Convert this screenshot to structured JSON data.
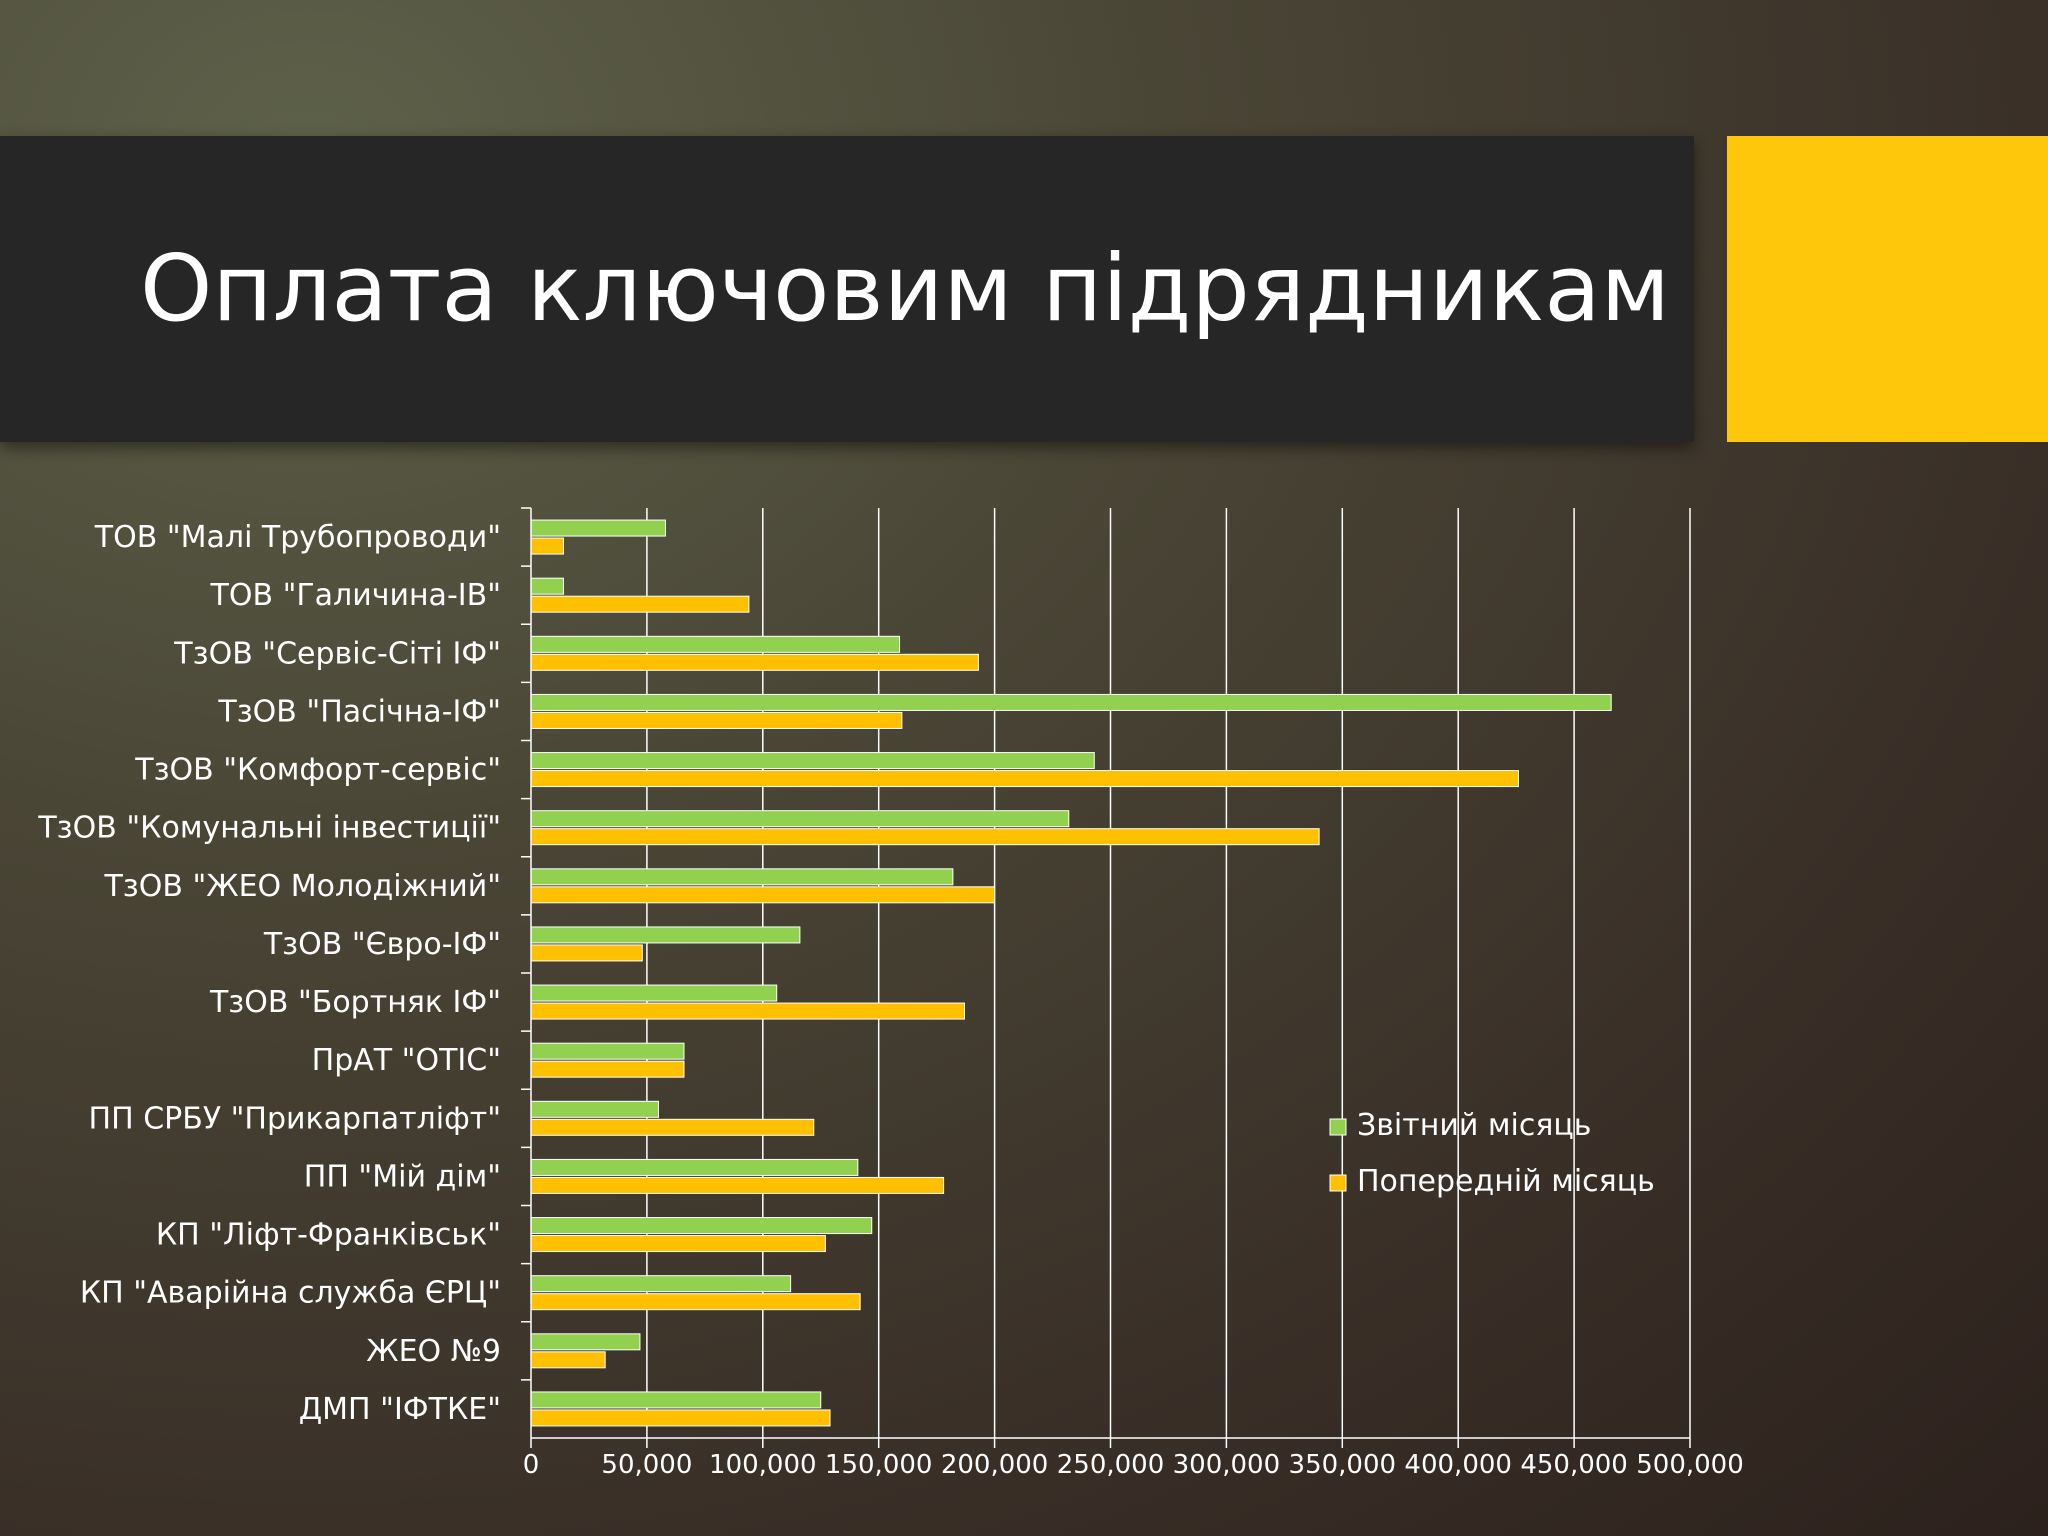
{
  "slide": {
    "title": "Оплата ключовим підрядникам",
    "colors": {
      "background": "#3f382d",
      "title_band": "#262626",
      "accent": "#fec70c"
    }
  },
  "chart_data": {
    "type": "bar",
    "orientation": "horizontal",
    "categories": [
      "ТОВ \"Малі Трубопроводи\"",
      "ТОВ \"Галичина-ІВ\"",
      "ТзОВ \"Сервіс-Сіті ІФ\"",
      "ТзОВ \"Пасічна-ІФ\"",
      "ТзОВ \"Комфорт-сервіс\"",
      "ТзОВ \"Комунальні інвестиції\"",
      "ТзОВ \"ЖЕО Молодіжний\"",
      "ТзОВ \"Євро-ІФ\"",
      "ТзОВ \"Бортняк ІФ\"",
      "ПрАТ \"ОТІС\"",
      "ПП СРБУ \"Прикарпатліфт\"",
      "ПП \"Мій дім\"",
      "КП \"Ліфт-Франківськ\"",
      "КП \"Аварійна служба ЄРЦ\"",
      "ЖЕО №9",
      "ДМП \"ІФТКЕ\""
    ],
    "series": [
      {
        "name": "Звітний місяць",
        "color": "#92d050",
        "values": [
          58000,
          14000,
          159000,
          466000,
          243000,
          232000,
          182000,
          116000,
          106000,
          66000,
          55000,
          141000,
          147000,
          112000,
          47000,
          125000
        ]
      },
      {
        "name": "Попередній місяць",
        "color": "#ffc000",
        "values": [
          14000,
          94000,
          193000,
          160000,
          426000,
          340000,
          200000,
          48000,
          187000,
          66000,
          122000,
          178000,
          127000,
          142000,
          32000,
          129000
        ]
      }
    ],
    "xlim": [
      0,
      500000
    ],
    "xticks": [
      "0",
      "50,000",
      "100,000",
      "150,000",
      "200,000",
      "250,000",
      "300,000",
      "350,000",
      "400,000",
      "450,000",
      "500,000"
    ],
    "grid": "vertical",
    "legend_position": "right-center"
  }
}
